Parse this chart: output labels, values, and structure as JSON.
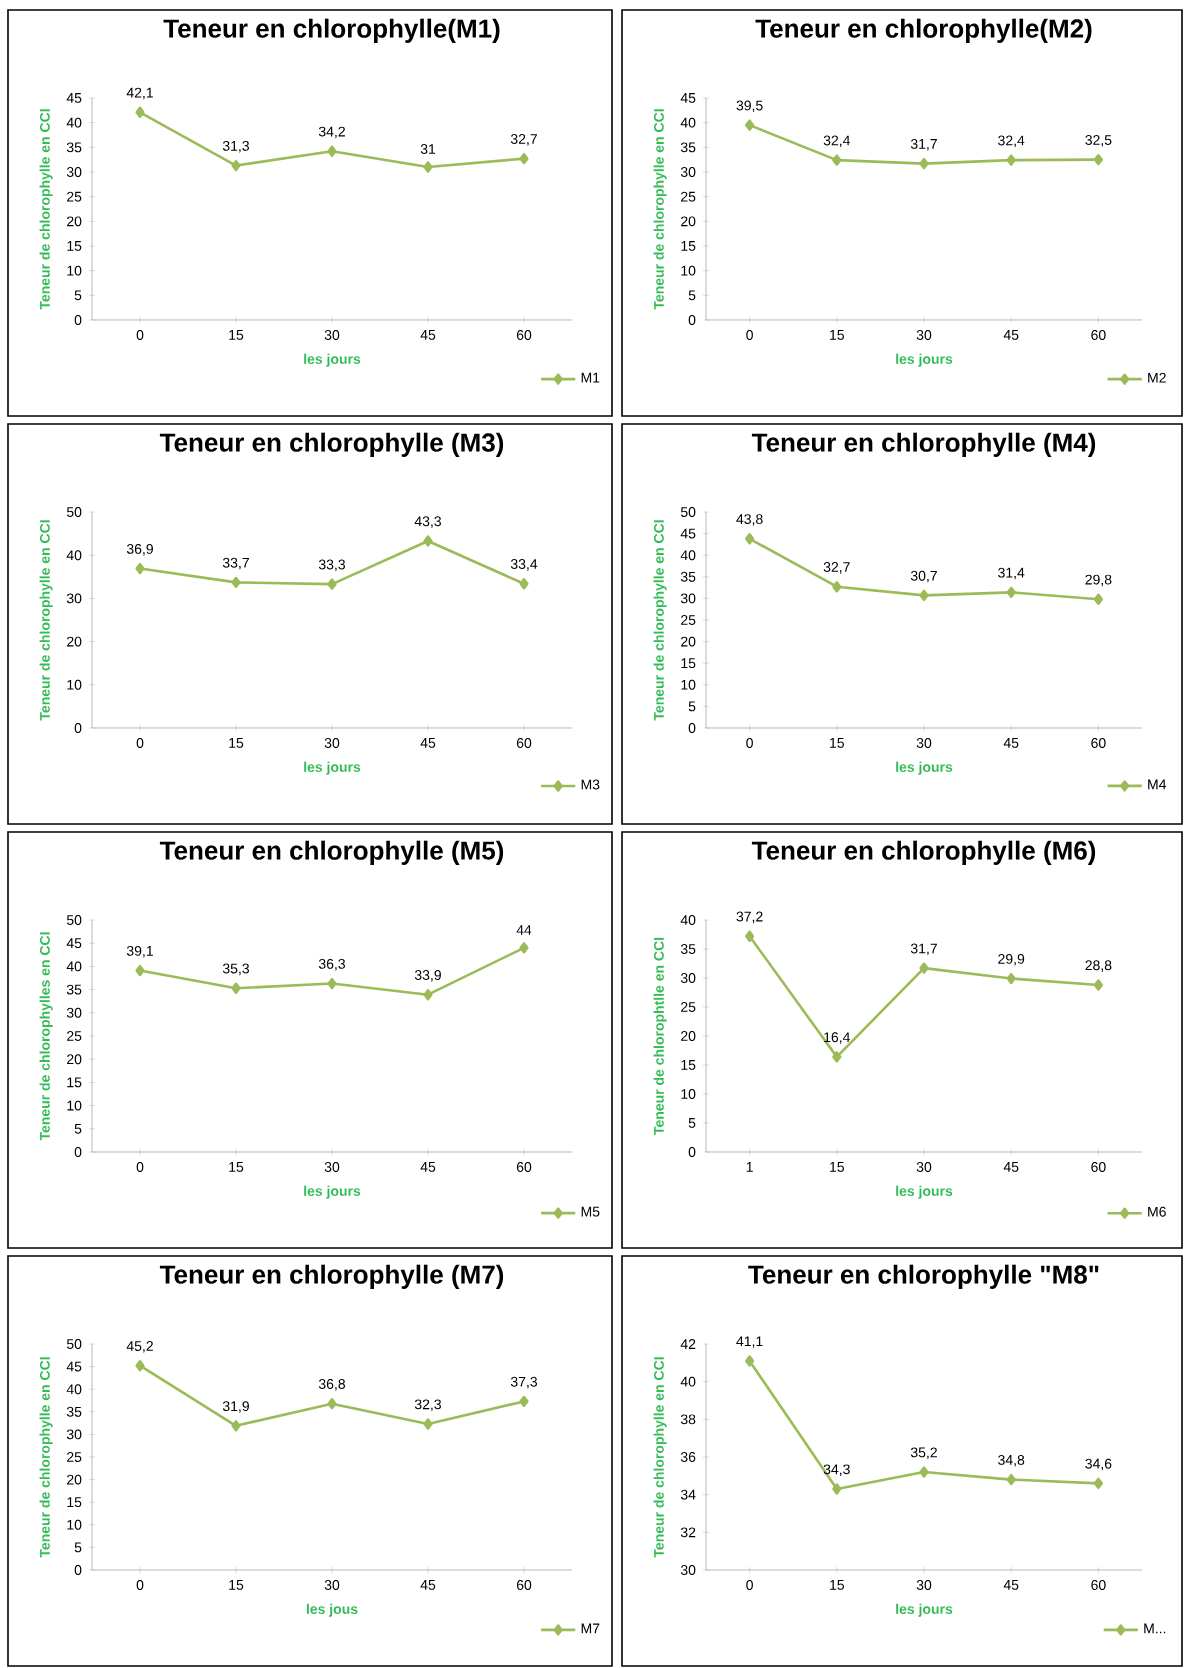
{
  "chart_data": [
    {
      "type": "line",
      "title": "Teneur en chlorophylle(M1)",
      "xlabel": "les jours",
      "ylabel": "Teneur de chlorophylle en CCI",
      "categories": [
        "0",
        "15",
        "30",
        "45",
        "60"
      ],
      "ylim": [
        0,
        45
      ],
      "yticks": [
        0,
        5,
        10,
        15,
        20,
        25,
        30,
        35,
        40,
        45
      ],
      "legend": "bottom right",
      "marker": "diamond",
      "series": [
        {
          "name": "M1",
          "color": "#9bbb59",
          "values": [
            42.1,
            31.3,
            34.2,
            31,
            32.7
          ],
          "value_labels": [
            "42,1",
            "31,3",
            "34,2",
            "31",
            "32,7"
          ]
        }
      ]
    },
    {
      "type": "line",
      "title": "Teneur en chlorophylle(M2)",
      "xlabel": "les jours",
      "ylabel": "Teneur de chlorophylle en CCI",
      "categories": [
        "0",
        "15",
        "30",
        "45",
        "60"
      ],
      "ylim": [
        0,
        45
      ],
      "yticks": [
        0,
        5,
        10,
        15,
        20,
        25,
        30,
        35,
        40,
        45
      ],
      "legend": "bottom right",
      "marker": "diamond",
      "series": [
        {
          "name": "M2",
          "color": "#9bbb59",
          "values": [
            39.5,
            32.4,
            31.7,
            32.4,
            32.5
          ],
          "value_labels": [
            "39,5",
            "32,4",
            "31,7",
            "32,4",
            "32,5"
          ]
        }
      ]
    },
    {
      "type": "line",
      "title": "Teneur en chlorophylle (M3)",
      "xlabel": "les jours",
      "ylabel": "Teneur de chlorophylle en CCI",
      "categories": [
        "0",
        "15",
        "30",
        "45",
        "60"
      ],
      "ylim": [
        0,
        50
      ],
      "yticks": [
        0,
        10,
        20,
        30,
        40,
        50
      ],
      "legend": "bottom right",
      "marker": "diamond",
      "series": [
        {
          "name": "M3",
          "color": "#9bbb59",
          "values": [
            36.9,
            33.7,
            33.3,
            43.3,
            33.4
          ],
          "value_labels": [
            "36,9",
            "33,7",
            "33,3",
            "43,3",
            "33,4"
          ]
        }
      ]
    },
    {
      "type": "line",
      "title": "Teneur en chlorophylle (M4)",
      "xlabel": "les jours",
      "ylabel": "Teneur de chlorophylle en CCI",
      "categories": [
        "0",
        "15",
        "30",
        "45",
        "60"
      ],
      "ylim": [
        0,
        50
      ],
      "yticks": [
        0,
        5,
        10,
        15,
        20,
        25,
        30,
        35,
        40,
        45,
        50
      ],
      "legend": "bottom right",
      "marker": "diamond",
      "series": [
        {
          "name": "M4",
          "color": "#9bbb59",
          "values": [
            43.8,
            32.7,
            30.7,
            31.4,
            29.8
          ],
          "value_labels": [
            "43,8",
            "32,7",
            "30,7",
            "31,4",
            "29,8"
          ]
        }
      ]
    },
    {
      "type": "line",
      "title": "Teneur en chlorophylle (M5)",
      "xlabel": "les jours",
      "ylabel": "Teneur de chlorophylles en CCI",
      "categories": [
        "0",
        "15",
        "30",
        "45",
        "60"
      ],
      "ylim": [
        0,
        50
      ],
      "yticks": [
        0,
        5,
        10,
        15,
        20,
        25,
        30,
        35,
        40,
        45,
        50
      ],
      "legend": "bottom right",
      "marker": "diamond",
      "series": [
        {
          "name": "M5",
          "color": "#9bbb59",
          "values": [
            39.1,
            35.3,
            36.3,
            33.9,
            44
          ],
          "value_labels": [
            "39,1",
            "35,3",
            "36,3",
            "33,9",
            "44"
          ]
        }
      ]
    },
    {
      "type": "line",
      "title": "Teneur en chlorophylle (M6)",
      "xlabel": "les jours",
      "ylabel": "Teneur de chlorophtlle en CCI",
      "categories": [
        "1",
        "15",
        "30",
        "45",
        "60"
      ],
      "ylim": [
        0,
        40
      ],
      "yticks": [
        0,
        5,
        10,
        15,
        20,
        25,
        30,
        35,
        40
      ],
      "legend": "bottom right",
      "marker": "diamond",
      "series": [
        {
          "name": "M6",
          "color": "#9bbb59",
          "values": [
            37.2,
            16.4,
            31.7,
            29.9,
            28.8
          ],
          "value_labels": [
            "37,2",
            "16,4",
            "31,7",
            "29,9",
            "28,8"
          ]
        }
      ]
    },
    {
      "type": "line",
      "title": "Teneur en chlorophylle (M7)",
      "xlabel": "les jous",
      "ylabel": "Teneur de chlorophylle en CCI",
      "categories": [
        "0",
        "15",
        "30",
        "45",
        "60"
      ],
      "ylim": [
        0,
        50
      ],
      "yticks": [
        0,
        5,
        10,
        15,
        20,
        25,
        30,
        35,
        40,
        45,
        50
      ],
      "legend": "bottom right",
      "marker": "diamond",
      "series": [
        {
          "name": "M7",
          "color": "#9bbb59",
          "values": [
            45.2,
            31.9,
            36.8,
            32.3,
            37.3
          ],
          "value_labels": [
            "45,2",
            "31,9",
            "36,8",
            "32,3",
            "37,3"
          ]
        }
      ]
    },
    {
      "type": "line",
      "title": "Teneur en chlorophylle \"M8\"",
      "xlabel": "les jours",
      "ylabel": "Teneur de chlorophylle en CCI",
      "categories": [
        "0",
        "15",
        "30",
        "45",
        "60"
      ],
      "ylim": [
        30,
        42
      ],
      "yticks": [
        30,
        32,
        34,
        36,
        38,
        40,
        42
      ],
      "legend": "bottom right",
      "marker": "diamond",
      "series": [
        {
          "name": "M...",
          "color": "#9bbb59",
          "values": [
            41.1,
            34.3,
            35.2,
            34.8,
            34.6
          ],
          "value_labels": [
            "41,1",
            "34,3",
            "35,2",
            "34,8",
            "34,6"
          ]
        }
      ]
    }
  ]
}
